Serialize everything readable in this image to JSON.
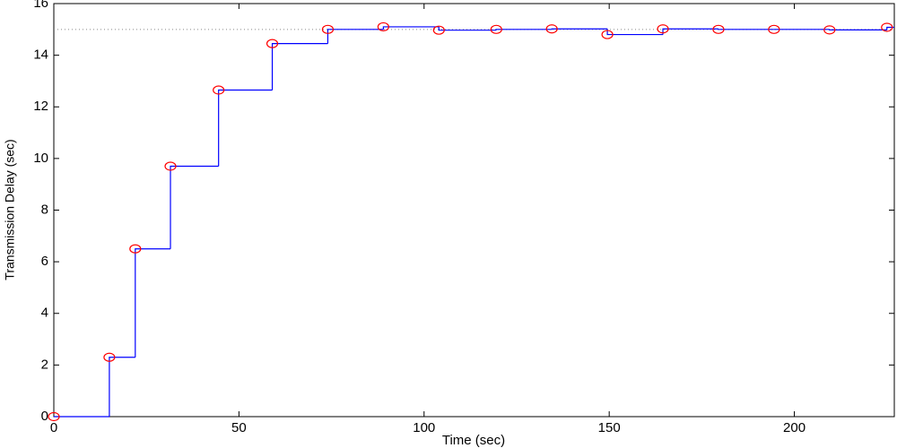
{
  "chart_data": {
    "type": "step",
    "x_label": "Time (sec)",
    "y_label": "Transmission Delay (sec)",
    "x": [
      0,
      15,
      22,
      31.5,
      44.5,
      59,
      74,
      89,
      104,
      119.5,
      134.5,
      149.5,
      164.5,
      179.5,
      194.5,
      209.5,
      225
    ],
    "series": [
      {
        "color": "#0000ff",
        "marker_color": "#ff0000",
        "values": [
          0,
          2.3,
          6.5,
          9.7,
          12.65,
          14.45,
          15.0,
          15.1,
          14.97,
          15.0,
          15.02,
          14.8,
          15.02,
          15.0,
          15.0,
          14.98,
          15.08
        ]
      }
    ],
    "reference_line": {
      "value": 15,
      "color": "#888888"
    },
    "xlim": [
      0,
      227
    ],
    "ylim": [
      0,
      16
    ],
    "xticks": [
      0,
      50,
      100,
      150,
      200
    ],
    "yticks": [
      0,
      2,
      4,
      6,
      8,
      10,
      12,
      14,
      16
    ]
  }
}
